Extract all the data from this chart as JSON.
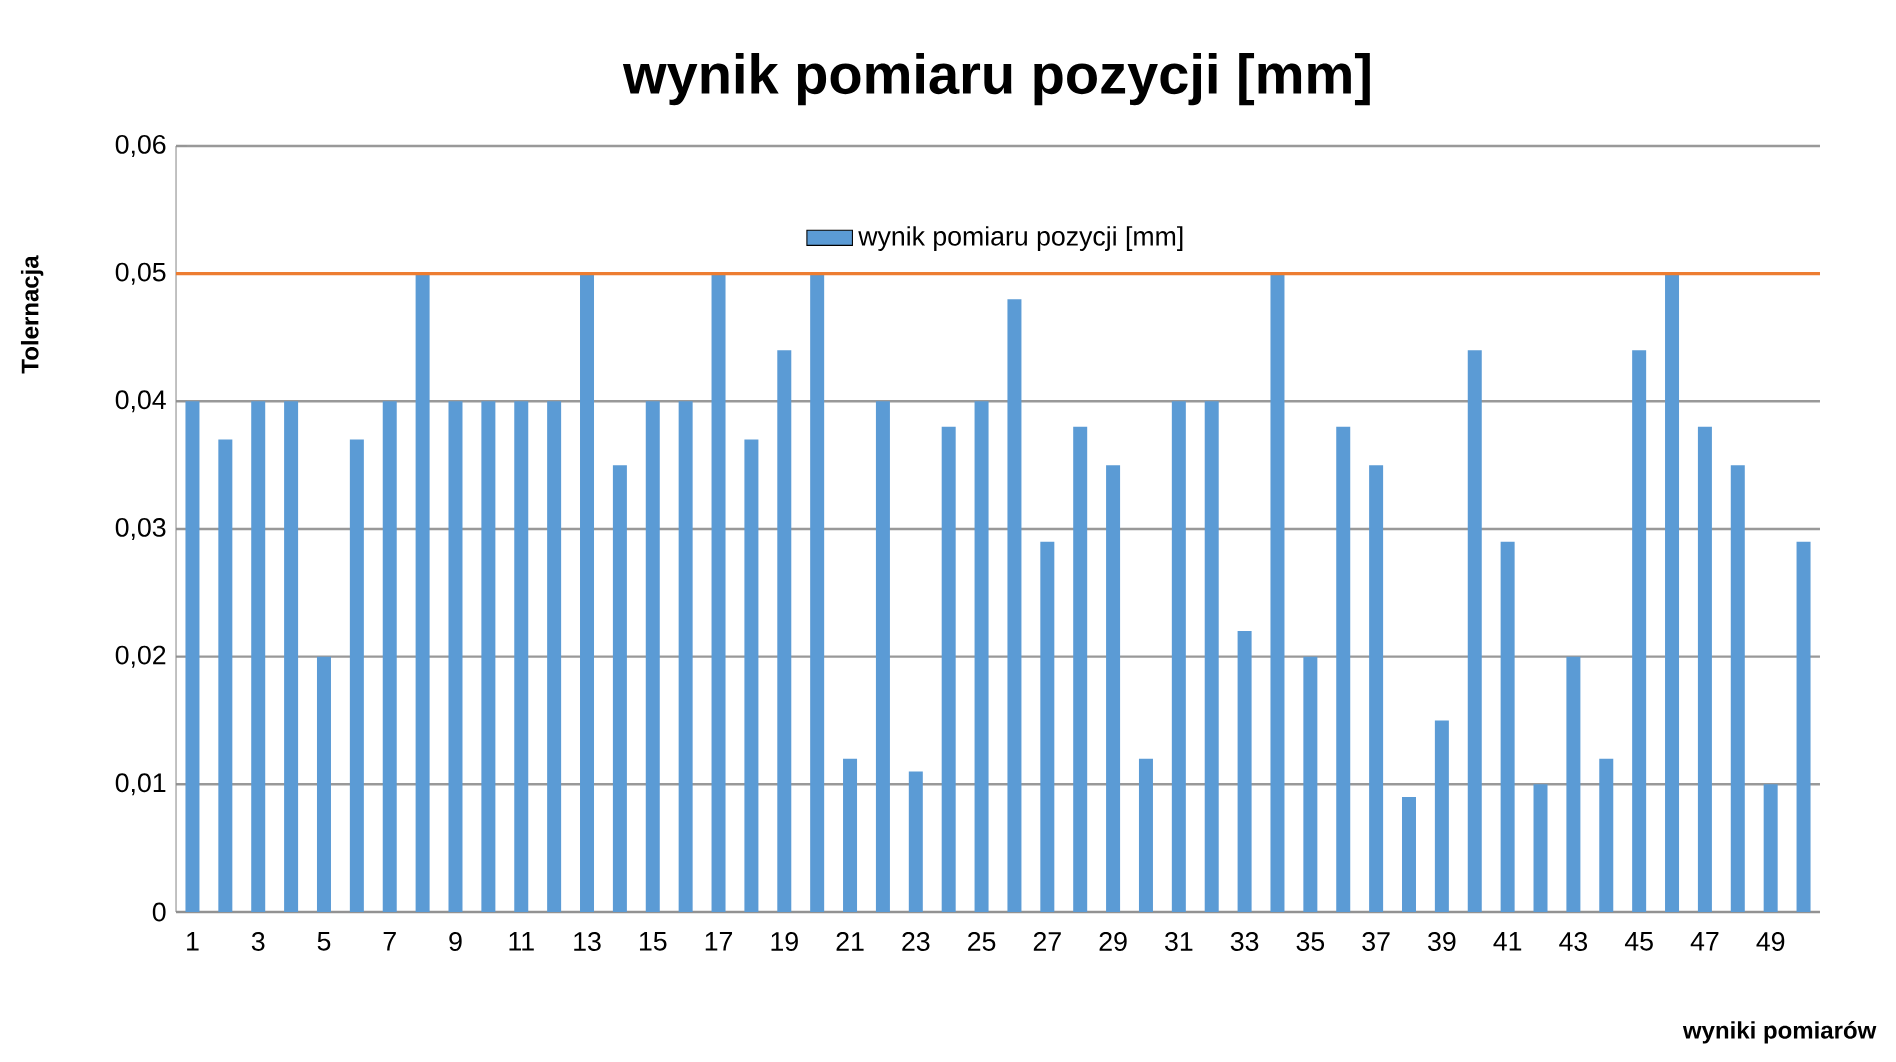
{
  "chart_data": {
    "type": "bar",
    "title": "wynik pomiaru pozycji [mm]",
    "xlabel": "wyniki pomiarów",
    "ylabel": "Tolernacja",
    "categories": [
      "1",
      null,
      "3",
      null,
      "5",
      null,
      "7",
      null,
      "9",
      null,
      "11",
      null,
      "13",
      null,
      "15",
      null,
      "17",
      null,
      "19",
      null,
      "21",
      null,
      "23",
      null,
      "25",
      null,
      "27",
      null,
      "29",
      null,
      "31",
      null,
      "33",
      null,
      "35",
      null,
      "37",
      null,
      "39",
      null,
      "41",
      null,
      "43",
      null,
      "45",
      null,
      "47",
      null,
      "49",
      null
    ],
    "series": [
      {
        "name": "wynik pomiaru pozycji [mm]",
        "color": "#5b9bd5",
        "values": [
          0.04,
          0.037,
          0.04,
          0.04,
          0.02,
          0.037,
          0.04,
          0.05,
          0.04,
          0.04,
          0.04,
          0.04,
          0.05,
          0.035,
          0.04,
          0.04,
          0.05,
          0.037,
          0.044,
          0.05,
          0.012,
          0.04,
          0.011,
          0.038,
          0.04,
          0.048,
          0.029,
          0.038,
          0.035,
          0.012,
          0.04,
          0.04,
          0.022,
          0.05,
          0.02,
          0.038,
          0.035,
          0.009,
          0.015,
          0.044,
          0.029,
          0.01,
          0.02,
          0.012,
          0.044,
          0.05,
          0.038,
          0.035,
          0.01,
          0.029
        ]
      }
    ],
    "ylim": [
      0,
      0.06
    ],
    "yticks": [
      0,
      {
        "value": 0.01,
        "label": "0,01"
      },
      {
        "value": 0.02,
        "label": "0,02"
      },
      {
        "value": 0.03,
        "label": "0,03"
      },
      {
        "value": 0.04,
        "label": "0,04"
      },
      {
        "value": 0.05,
        "label": "0,05"
      },
      {
        "value": 0.06,
        "label": "0,06"
      }
    ],
    "ref_lines": [
      {
        "axis": "y",
        "value": 0.05,
        "color": "#ed7d31"
      }
    ],
    "grid": "y",
    "legend": "top"
  }
}
